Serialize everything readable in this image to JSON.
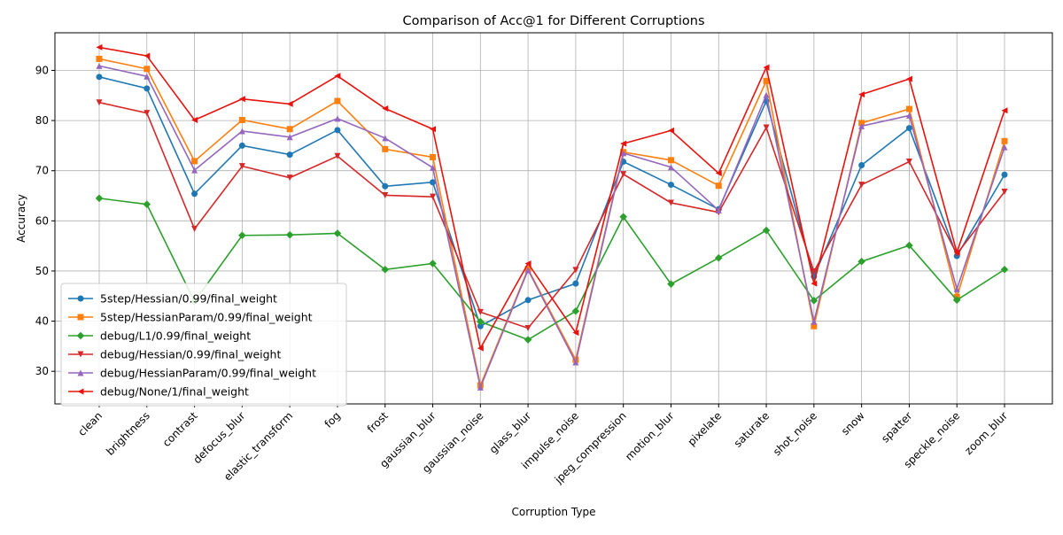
{
  "chart_data": {
    "type": "line",
    "title": "Comparison of Acc@1 for Different Corruptions",
    "xlabel": "Corruption Type",
    "ylabel": "Accuracy",
    "ylim": [
      23.5,
      97.5
    ],
    "yticks": [
      30,
      40,
      50,
      60,
      70,
      80,
      90
    ],
    "grid": true,
    "legend_position": "lower-left",
    "categories": [
      "clean",
      "brightness",
      "contrast",
      "defocus_blur",
      "elastic_transform",
      "fog",
      "frost",
      "gaussian_blur",
      "gaussian_noise",
      "glass_blur",
      "impulse_noise",
      "jpeg_compression",
      "motion_blur",
      "pixelate",
      "saturate",
      "shot_noise",
      "snow",
      "spatter",
      "speckle_noise",
      "zoom_blur"
    ],
    "series": [
      {
        "name": "5step/Hessian/0.99/final_weight",
        "color": "#1f77b4",
        "marker": "circle",
        "values": [
          88.7,
          86.4,
          65.4,
          75.0,
          73.2,
          78.1,
          66.9,
          67.7,
          39.0,
          44.2,
          47.5,
          71.8,
          67.2,
          62.3,
          83.9,
          48.9,
          71.1,
          78.5,
          53.0,
          69.2
        ]
      },
      {
        "name": "5step/HessianParam/0.99/final_weight",
        "color": "#ff7f0e",
        "marker": "square",
        "values": [
          92.3,
          90.3,
          71.9,
          80.1,
          78.3,
          83.9,
          74.3,
          72.7,
          27.2,
          50.4,
          32.3,
          73.7,
          72.1,
          67.0,
          87.9,
          39.0,
          79.5,
          82.3,
          44.8,
          75.9
        ]
      },
      {
        "name": "debug/L1/0.99/final_weight",
        "color": "#2ca02c",
        "marker": "diamond",
        "values": [
          64.5,
          63.3,
          43.9,
          57.1,
          57.2,
          57.5,
          50.3,
          51.5,
          39.9,
          36.3,
          42.0,
          60.8,
          47.4,
          52.6,
          58.1,
          44.1,
          51.9,
          55.1,
          44.2,
          50.3
        ]
      },
      {
        "name": "debug/Hessian/0.99/final_weight",
        "color": "#d62728",
        "marker": "triangle-down",
        "values": [
          83.6,
          81.5,
          58.4,
          70.9,
          68.6,
          72.9,
          65.1,
          64.8,
          41.8,
          38.6,
          50.2,
          69.3,
          63.6,
          61.7,
          78.6,
          49.9,
          67.2,
          71.8,
          53.4,
          65.8
        ]
      },
      {
        "name": "debug/HessianParam/0.99/final_weight",
        "color": "#9467bd",
        "marker": "triangle-up",
        "values": [
          90.9,
          88.8,
          70.1,
          77.9,
          76.7,
          80.4,
          76.5,
          70.6,
          26.8,
          50.2,
          31.8,
          73.5,
          70.7,
          62.1,
          85.1,
          39.9,
          78.9,
          81.0,
          46.4,
          74.7
        ]
      },
      {
        "name": "debug/None/1/final_weight",
        "color": "#e8120c",
        "marker": "triangle-left",
        "values": [
          94.6,
          92.9,
          80.1,
          84.3,
          83.3,
          88.9,
          82.4,
          78.3,
          34.6,
          51.5,
          37.7,
          75.4,
          78.0,
          69.5,
          90.6,
          47.5,
          85.2,
          88.3,
          53.7,
          82.0
        ]
      }
    ]
  }
}
